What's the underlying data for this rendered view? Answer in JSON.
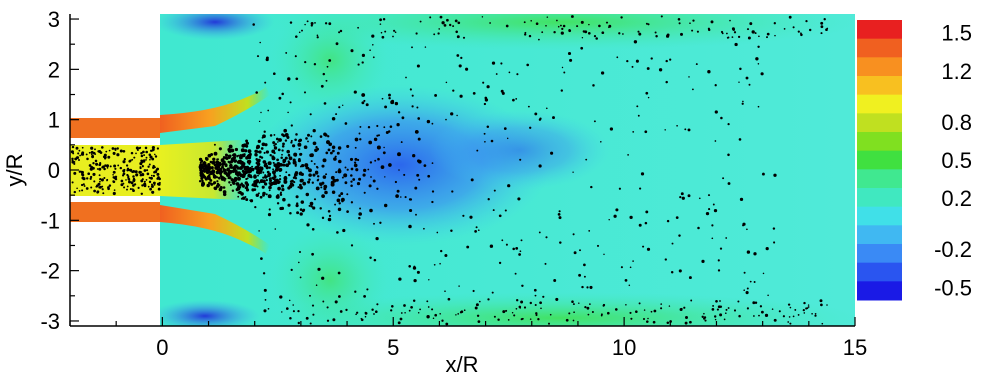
{
  "chart_data": {
    "type": "heatmap",
    "title": "",
    "xlabel": "x/R",
    "ylabel": "y/R",
    "xlim": [
      -2,
      15
    ],
    "ylim": [
      -3.1,
      3.1
    ],
    "xticks": [
      0,
      5,
      10,
      15
    ],
    "yticks": [
      3,
      2,
      1,
      0,
      -1,
      -2,
      -3
    ],
    "colorbar": {
      "tick_labels": [
        "1.5",
        "1.2",
        "0.8",
        "0.5",
        "0.2",
        "-0.2",
        "-0.5"
      ],
      "tick_values": [
        1.5,
        1.2,
        0.8,
        0.5,
        0.2,
        -0.2,
        -0.5
      ],
      "range": [
        -0.6,
        1.6
      ],
      "colors": [
        "#1a1ae6",
        "#2a55f0",
        "#3a8af5",
        "#40b8f2",
        "#40e0e8",
        "#40e8c0",
        "#40e890",
        "#40e040",
        "#80e020",
        "#c0e020",
        "#f0f020",
        "#f8c020",
        "#f89020",
        "#f06020",
        "#e82020"
      ]
    },
    "annotations": [
      "pipe walls at y/R = ±1 for x/R < 0",
      "black dots: dispersed particles, densest near x/R 2–5 on the centreline"
    ]
  }
}
